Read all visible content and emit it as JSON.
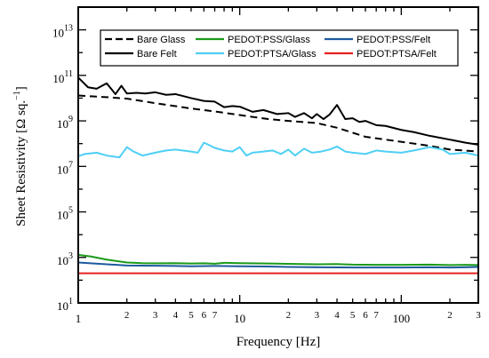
{
  "chart_data": {
    "type": "line",
    "xscale": "log",
    "yscale": "log",
    "xlabel": "Frequency [Hz]",
    "ylabel": "Sheet Resistivity [Ω sq.",
    "ylabel_superscript": "−1",
    "ylabel_close": "]",
    "xlim": [
      1,
      300
    ],
    "ylim": [
      10,
      100000000000000.0
    ],
    "x_major_ticks": [
      1,
      10,
      100
    ],
    "x_major_labels": [
      "1",
      "10",
      "100"
    ],
    "x_minor_labeled": [
      2,
      3,
      4,
      5,
      6,
      7,
      20,
      30,
      40,
      50,
      60,
      70,
      200,
      300
    ],
    "x_minor_labels": [
      "2",
      "3",
      "4",
      "5",
      "6",
      "7",
      "2",
      "3",
      "4",
      "5",
      "6",
      "7",
      "2",
      "3"
    ],
    "y_major_exponents": [
      1,
      3,
      5,
      7,
      9,
      11,
      13
    ],
    "y_tick_base": "10",
    "legend_position": "top",
    "legend_order": [
      0,
      2,
      3,
      1,
      4,
      5
    ],
    "series": [
      {
        "name": "Bare Glass",
        "color": "#000000",
        "style": "dashed",
        "x": [
          1,
          1.2,
          1.5,
          2,
          3,
          5,
          7,
          10,
          15,
          20,
          30,
          40,
          60,
          100,
          150,
          200,
          300
        ],
        "y": [
          13000000000,
          12000000000,
          11000000000,
          9500000000,
          6000000000,
          3500000000,
          2600000000,
          1800000000,
          1200000000,
          1000000000,
          800000000,
          500000000,
          200000000,
          120000000,
          80000000,
          55000000,
          45000000
        ]
      },
      {
        "name": "Bare Felt",
        "color": "#000000",
        "style": "solid",
        "x": [
          1,
          1.15,
          1.3,
          1.5,
          1.7,
          1.85,
          2,
          2.3,
          2.6,
          3,
          3.5,
          4,
          5,
          6,
          7,
          8,
          9,
          10,
          12,
          14,
          17,
          20,
          22,
          25,
          28,
          30,
          33,
          36,
          40,
          45,
          50,
          55,
          60,
          70,
          80,
          100,
          120,
          150,
          200,
          250,
          300
        ],
        "y": [
          80000000000,
          30000000000,
          26000000000,
          45000000000,
          15000000000,
          35000000000,
          16000000000,
          17000000000,
          16000000000,
          18000000000,
          14000000000,
          15000000000,
          10000000000,
          7500000000,
          7000000000,
          4000000000,
          4500000000,
          4200000000,
          2500000000,
          3000000000,
          2000000000,
          2200000000,
          1500000000,
          2200000000,
          1300000000,
          2000000000,
          1200000000,
          1900000000,
          5000000000,
          1200000000,
          1300000000,
          900000000,
          1000000000,
          650000000,
          600000000,
          400000000,
          320000000,
          220000000,
          150000000,
          110000000,
          90000000
        ]
      },
      {
        "name": "PEDOT:PSS/Glass",
        "color": "#1a9a1a",
        "style": "solid",
        "x": [
          1,
          1.2,
          1.5,
          2,
          2.5,
          3,
          4,
          5,
          6,
          7,
          8,
          10,
          15,
          20,
          30,
          40,
          50,
          70,
          100,
          150,
          200,
          250,
          300
        ],
        "y": [
          1300,
          1100,
          800,
          600,
          560,
          550,
          560,
          540,
          550,
          530,
          580,
          560,
          540,
          520,
          500,
          510,
          480,
          470,
          470,
          480,
          460,
          470,
          460
        ]
      },
      {
        "name": "PEDOT:PSS/Felt",
        "color": "#1d5a9e",
        "style": "solid",
        "x": [
          1,
          1.5,
          2,
          3,
          4,
          5,
          7,
          10,
          15,
          20,
          30,
          50,
          70,
          100,
          150,
          200,
          250,
          300
        ],
        "y": [
          600,
          500,
          440,
          430,
          420,
          410,
          420,
          410,
          400,
          380,
          370,
          360,
          360,
          360,
          370,
          360,
          370,
          380
        ]
      },
      {
        "name": "PEDOT:PTSA/Glass",
        "color": "#4fcff5",
        "style": "solid",
        "x": [
          1,
          1.1,
          1.3,
          1.5,
          1.8,
          2,
          2.2,
          2.5,
          3,
          3.5,
          4,
          5,
          5.5,
          6,
          6.5,
          7,
          8,
          9,
          10,
          11,
          12,
          14,
          16,
          18,
          20,
          22,
          25,
          28,
          32,
          36,
          40,
          45,
          50,
          60,
          70,
          80,
          100,
          120,
          150,
          180,
          200,
          250,
          300
        ],
        "y": [
          28000000,
          35000000,
          40000000,
          30000000,
          25000000,
          70000000,
          45000000,
          30000000,
          40000000,
          50000000,
          55000000,
          45000000,
          40000000,
          110000000,
          85000000,
          65000000,
          50000000,
          45000000,
          70000000,
          30000000,
          40000000,
          45000000,
          50000000,
          35000000,
          55000000,
          30000000,
          60000000,
          40000000,
          45000000,
          55000000,
          75000000,
          45000000,
          40000000,
          35000000,
          50000000,
          45000000,
          40000000,
          50000000,
          70000000,
          55000000,
          35000000,
          40000000,
          30000000
        ]
      },
      {
        "name": "PEDOT:PTSA/Felt",
        "color": "#e8211d",
        "style": "solid",
        "x": [
          1,
          2,
          5,
          10,
          20,
          50,
          100,
          200,
          300
        ],
        "y": [
          200,
          200,
          200,
          200,
          200,
          200,
          200,
          200,
          200
        ]
      }
    ]
  }
}
